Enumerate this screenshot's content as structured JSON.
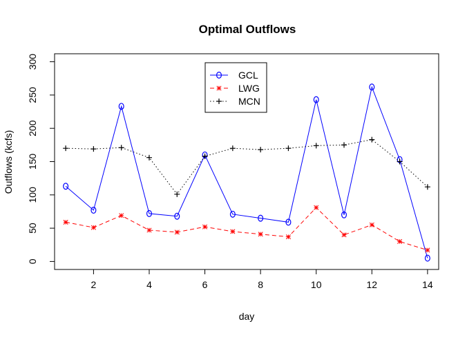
{
  "chart_data": {
    "type": "line",
    "title": "Optimal Outflows",
    "xlabel": "day",
    "ylabel": "Outflows (kcfs)",
    "x": [
      1,
      2,
      3,
      4,
      5,
      6,
      7,
      8,
      9,
      10,
      11,
      12,
      13,
      14
    ],
    "xlim": [
      0.6,
      14.4
    ],
    "ylim": [
      -12,
      312
    ],
    "x_ticks": [
      2,
      4,
      6,
      8,
      10,
      12,
      14
    ],
    "y_ticks": [
      0,
      50,
      100,
      150,
      200,
      250,
      300
    ],
    "grid": false,
    "legend_position": "top-center",
    "series": [
      {
        "name": "GCL",
        "color": "#0000ff",
        "line_style": "solid",
        "marker": "circle",
        "values": [
          113,
          77,
          233,
          72,
          68,
          160,
          71,
          65,
          59,
          243,
          70,
          262,
          153,
          5
        ]
      },
      {
        "name": "LWG",
        "color": "#ff0000",
        "line_style": "dashed",
        "marker": "asterisk",
        "values": [
          59,
          51,
          69,
          47,
          44,
          52,
          45,
          41,
          37,
          81,
          40,
          55,
          30,
          17
        ]
      },
      {
        "name": "MCN",
        "color": "#000000",
        "line_style": "dotted",
        "marker": "plus",
        "values": [
          170,
          169,
          171,
          156,
          101,
          158,
          170,
          168,
          170,
          174,
          175,
          183,
          150,
          112
        ]
      }
    ]
  }
}
